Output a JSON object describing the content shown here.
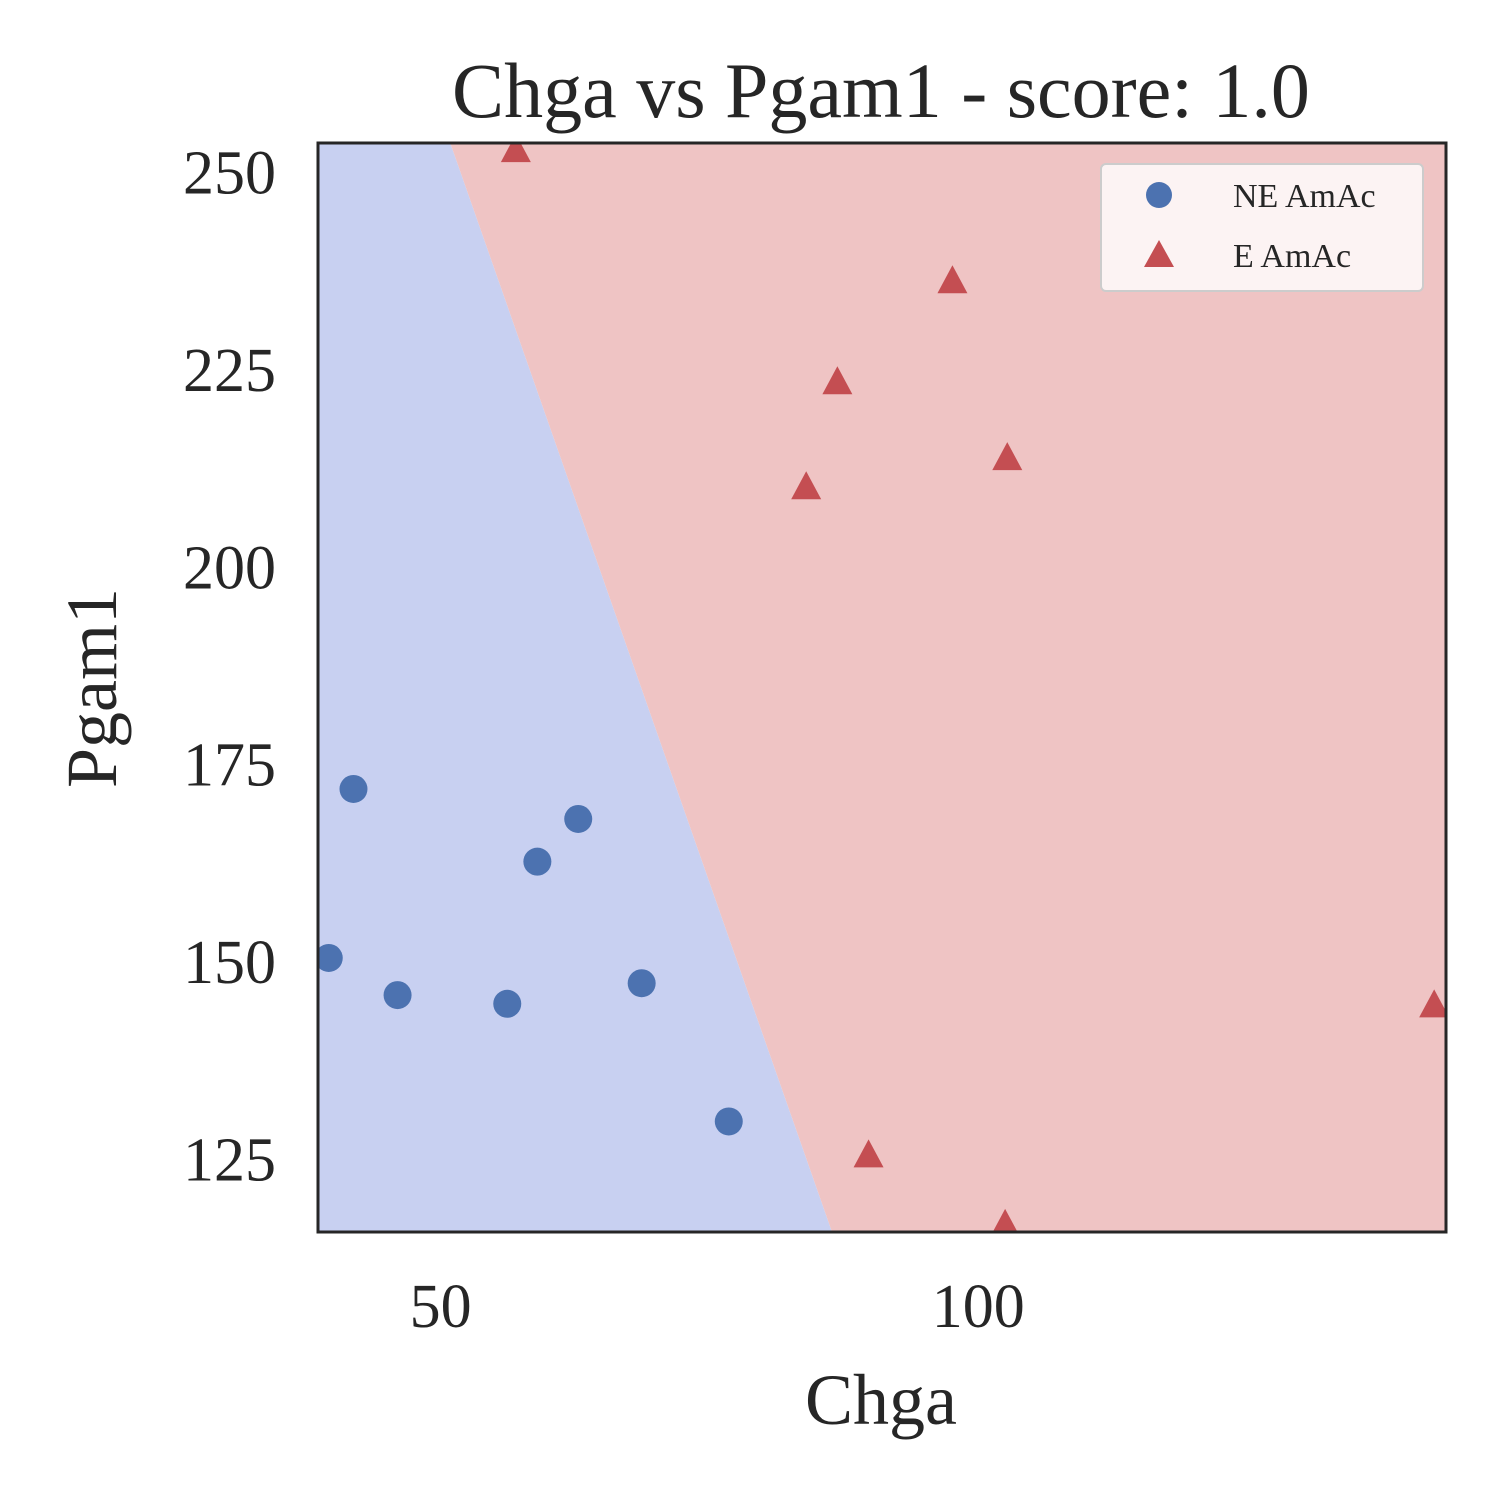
{
  "chart_data": {
    "type": "scatter",
    "title": "Chga vs Pgam1 - score: 1.0",
    "xlabel": "Chga",
    "ylabel": "Pgam1",
    "xlim": [
      38.6,
      143.5
    ],
    "ylim": [
      115.7,
      253.6
    ],
    "xticks": [
      50,
      100
    ],
    "yticks": [
      125,
      150,
      175,
      200,
      225,
      250
    ],
    "grid": false,
    "legend_position": "top-right",
    "decision_boundary": {
      "points": [
        [
          50.9,
          253.6
        ],
        [
          86.4,
          115.7
        ]
      ],
      "region_colors": {
        "NE AmAc": "#c8d0f1",
        "E AmAc": "#efc4c4"
      }
    },
    "series": [
      {
        "name": "NE AmAc",
        "marker": "circle",
        "color": "#4c72b0",
        "points": [
          [
            41.9,
            171.8
          ],
          [
            39.6,
            150.4
          ],
          [
            46.0,
            145.7
          ],
          [
            56.2,
            144.6
          ],
          [
            59.0,
            162.6
          ],
          [
            62.8,
            168.0
          ],
          [
            68.7,
            147.2
          ],
          [
            76.8,
            129.7
          ]
        ]
      },
      {
        "name": "E AmAc",
        "marker": "triangle",
        "color": "#c44e52",
        "points": [
          [
            57.0,
            252.6
          ],
          [
            97.6,
            236.0
          ],
          [
            86.9,
            223.2
          ],
          [
            84.0,
            209.9
          ],
          [
            102.7,
            213.6
          ],
          [
            89.8,
            125.3
          ],
          [
            102.5,
            116.5
          ],
          [
            142.4,
            144.3
          ]
        ]
      }
    ]
  }
}
